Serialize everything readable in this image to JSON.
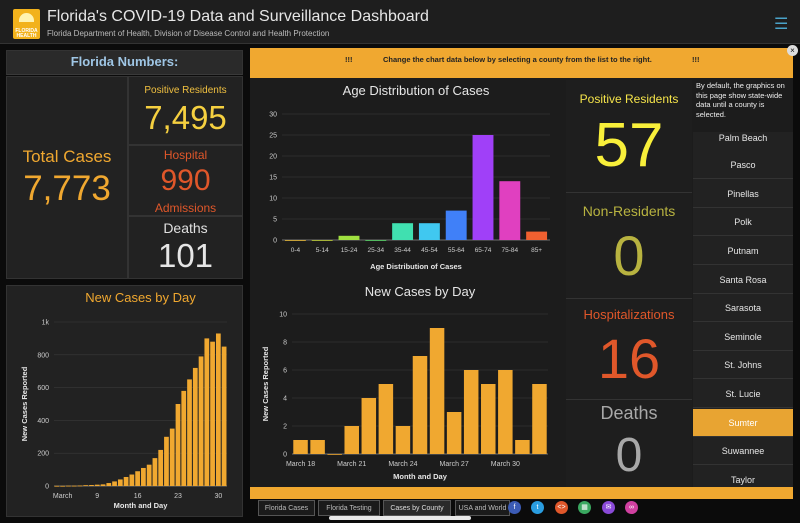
{
  "header": {
    "logo_text": "FLORIDA HEALTH",
    "title": "Florida's COVID-19 Data and Surveillance Dashboard",
    "subtitle": "Florida Department of Health, Division of Disease Control and Health Protection",
    "menu_icon": "hamburger-menu-icon"
  },
  "florida": {
    "heading": "Florida Numbers:",
    "total_cases_label": "Total Cases",
    "total_cases": "7,773",
    "positive_residents_label": "Positive Residents",
    "positive_residents": "7,495",
    "hospital_label": "Hospital",
    "hospital": "990",
    "admissions_label": "Admissions",
    "deaths_label": "Deaths",
    "deaths": "101"
  },
  "banner": {
    "left_marks": "!!!",
    "text": "Change the chart data below by selecting a county from the list to the right.",
    "right_marks": "!!!"
  },
  "notice": "By default, the graphics on this page show state-wide data until a county is selected.",
  "county_stats": {
    "positive_residents_label": "Positive Residents",
    "positive_residents": "57",
    "non_residents_label": "Non-Residents",
    "non_residents": "0",
    "hospitalizations_label": "Hospitalizations",
    "hospitalizations": "16",
    "deaths_label": "Deaths",
    "deaths": "0"
  },
  "counties": [
    "Palm Beach",
    "Pasco",
    "Pinellas",
    "Polk",
    "Putnam",
    "Santa Rosa",
    "Sarasota",
    "Seminole",
    "St. Johns",
    "St. Lucie",
    "Sumter",
    "Suwannee",
    "Taylor"
  ],
  "selected_county": "Sumter",
  "tabs": [
    "Florida Cases",
    "Florida Testing",
    "Cases by County",
    "USA and World"
  ],
  "active_tab": "Cases by County",
  "share_icons": [
    "facebook-icon",
    "twitter-icon",
    "embed-icon",
    "qr-code-icon",
    "email-icon",
    "link-icon"
  ],
  "colors": {
    "accent": "#f0a830",
    "yellow": "#f5e44a",
    "orange_red": "#e0572a",
    "olive": "#b8b340",
    "grey": "#a8a8a8"
  },
  "chart_data": [
    {
      "type": "bar",
      "title": "Age Distribution of Cases",
      "xlabel": "Age Distribution of Cases",
      "ylabel": "",
      "categories": [
        "0-4",
        "5-14",
        "15-24",
        "25-34",
        "35-44",
        "45-54",
        "55-64",
        "65-74",
        "75-84",
        "85+"
      ],
      "values": [
        0,
        0,
        1,
        0,
        4,
        4,
        7,
        25,
        14,
        2
      ],
      "colors": [
        "#f0c040",
        "#c8d840",
        "#a0e040",
        "#60e070",
        "#40e0b0",
        "#40c8f0",
        "#4080f8",
        "#a040f8",
        "#e040c0",
        "#f06030"
      ],
      "ylim": [
        0,
        30
      ],
      "yticks": [
        0,
        5,
        10,
        15,
        20,
        25,
        30
      ]
    },
    {
      "type": "bar",
      "title": "New Cases by Day",
      "xlabel": "Month and Day",
      "ylabel": "New Cases Reported",
      "x_tick_labels": [
        "March 18",
        "March 21",
        "March 24",
        "March 27",
        "March 30"
      ],
      "values": [
        1,
        1,
        0,
        2,
        4,
        5,
        2,
        7,
        9,
        3,
        6,
        5,
        6,
        1,
        5
      ],
      "ylim": [
        0,
        10
      ],
      "yticks": [
        0,
        2,
        4,
        6,
        8,
        10
      ]
    },
    {
      "type": "bar",
      "title": "New Cases by Day",
      "xlabel": "Month and Day",
      "ylabel": "New Cases Reported",
      "x_tick_labels": [
        "March",
        "9",
        "16",
        "23",
        "30"
      ],
      "values": [
        1,
        1,
        2,
        2,
        3,
        5,
        6,
        8,
        10,
        18,
        28,
        40,
        55,
        70,
        90,
        110,
        130,
        170,
        220,
        300,
        350,
        500,
        580,
        650,
        720,
        790,
        900,
        880,
        930,
        850
      ],
      "ylim": [
        0,
        1000
      ],
      "yticks": [
        "0",
        "200",
        "400",
        "600",
        "800",
        "1k"
      ]
    }
  ]
}
